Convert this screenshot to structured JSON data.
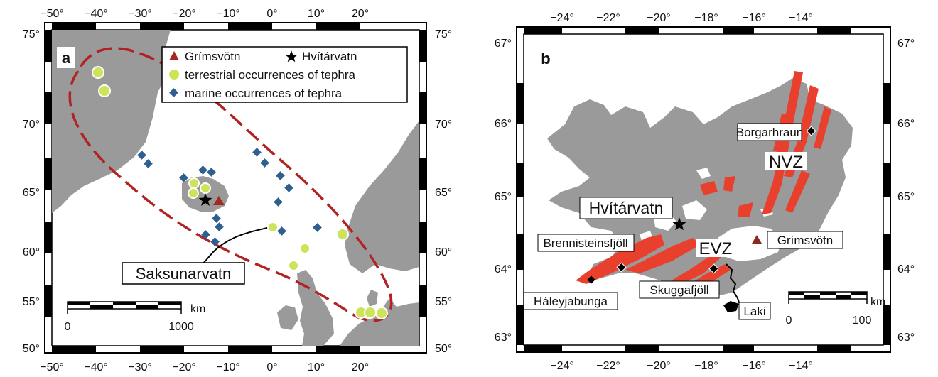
{
  "panel_a": {
    "letter": "a",
    "top_lon_ticks": [
      "−50°",
      "−40°",
      "−30°",
      "−20°",
      "−10°",
      "0°",
      "10°",
      "20°"
    ],
    "bottom_lon_ticks": [
      "−50°",
      "−40°",
      "−30°",
      "−20°",
      "−10°",
      "0°",
      "10°",
      "20°"
    ],
    "left_lat_ticks": [
      "75°",
      "70°",
      "65°",
      "60°",
      "55°",
      "50°"
    ],
    "right_lat_ticks": [
      "75°",
      "70°",
      "65°",
      "60°",
      "55°",
      "50°"
    ],
    "legend": {
      "volcano": "Grímsvötn",
      "lake": "Hvítárvatn",
      "terrestrial": "terrestrial occurrences of tephra",
      "marine": "marine occurrences of tephra"
    },
    "site_label": "Saksunarvatn",
    "scale": {
      "start": "0",
      "end": "1000",
      "unit": "km"
    },
    "colors": {
      "land": "#9a9a9a",
      "dashed": "#b22222",
      "terrestrial": "#cde35a",
      "marine": "#2f5f8f",
      "volcano": "#a32a1e"
    }
  },
  "panel_b": {
    "letter": "b",
    "top_lon_ticks": [
      "−24°",
      "−22°",
      "−20°",
      "−18°",
      "−16°",
      "−14°"
    ],
    "bottom_lon_ticks": [
      "−24°",
      "−22°",
      "−20°",
      "−18°",
      "−16°",
      "−14°"
    ],
    "left_lat_ticks": [
      "67°",
      "66°",
      "65°",
      "64°",
      "63°"
    ],
    "right_lat_ticks": [
      "67°",
      "66°",
      "65°",
      "64°",
      "63°"
    ],
    "labels": {
      "borgarhraun": "Borgarhraun",
      "nvz": "NVZ",
      "hvitarvatn": "Hvítárvatn",
      "brennisteinsfjoll": "Brennisteinsfjöll",
      "evz": "EVZ",
      "grimsvotn": "Grímsvötn",
      "haleyjabunga": "Háleyjabunga",
      "skuggafjoll": "Skuggafjöll",
      "laki": "Laki"
    },
    "scale": {
      "start": "0",
      "end": "100",
      "unit": "km"
    },
    "colors": {
      "land": "#9a9a9a",
      "rift": "#e8402c",
      "ice": "#ffffff"
    }
  }
}
